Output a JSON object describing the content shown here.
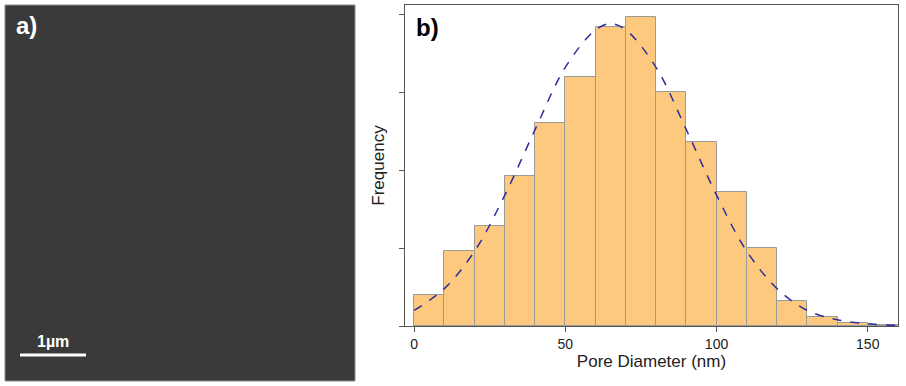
{
  "image_panel": {
    "label": "a)",
    "scale_bar": "1µm"
  },
  "chart_data": {
    "type": "histogram",
    "panel_label": "b)",
    "x_label": "Pore Diameter (nm)",
    "y_label": "Frequency",
    "bins": [
      0,
      10,
      20,
      30,
      40,
      50,
      60,
      70,
      80,
      90,
      100,
      110,
      120,
      130,
      140,
      150,
      160
    ],
    "values": [
      10,
      24,
      32,
      48,
      65,
      80,
      96,
      99,
      75,
      59,
      43,
      25,
      8,
      3,
      1,
      0.3
    ],
    "color": "#fdc97e",
    "xlim": [
      -3,
      160
    ],
    "xticks": [
      0,
      50,
      100,
      150
    ],
    "ylim": [
      0,
      103
    ],
    "yticks": [
      0,
      25,
      50,
      75,
      100
    ],
    "tick_labels": "x",
    "grid": false,
    "fit": {
      "type": "line",
      "x": [
        0,
        10,
        20,
        30,
        40,
        50,
        60,
        65,
        70,
        80,
        90,
        100,
        110,
        120,
        130,
        140,
        150,
        160
      ],
      "values": [
        5,
        12,
        24,
        42,
        63,
        83,
        95,
        97,
        95,
        83,
        63,
        42,
        24,
        12,
        5,
        2,
        0.7,
        0.2
      ],
      "color": "#2e2e9a",
      "line_style": "dash"
    }
  }
}
